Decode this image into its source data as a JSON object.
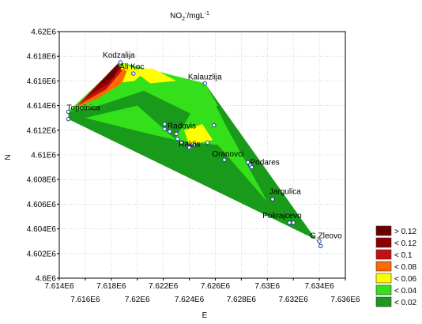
{
  "chart_data": {
    "type": "contour",
    "title": "NO2-/mgL-1",
    "title_parts": {
      "base": "NO",
      "sub": "2",
      "sup": "-",
      "unit": "/mgL",
      "unit_sup": "-1"
    },
    "xlabel": "E",
    "ylabel": "N",
    "xlim": [
      7.614,
      7.636
    ],
    "ylim": [
      4.6,
      4.62
    ],
    "grid": true,
    "x_ticks_top": [
      "7.614E6",
      "7.618E6",
      "7.622E6",
      "7.626E6",
      "7.63E6",
      "7.634E6"
    ],
    "x_ticks_bottom": [
      "7.616E6",
      "7.62E6",
      "7.624E6",
      "7.628E6",
      "7.632E6",
      "7.636E6"
    ],
    "y_ticks": [
      "4.6E6",
      "4.602E6",
      "4.604E6",
      "4.606E6",
      "4.608E6",
      "4.61E6",
      "4.612E6",
      "4.614E6",
      "4.616E6",
      "4.618E6",
      "4.62E6"
    ],
    "legend_position": "bottom-right",
    "legend": [
      {
        "label": "> 0.12",
        "color": "#6b0000"
      },
      {
        "label": "< 0.12",
        "color": "#8c0000"
      },
      {
        "label": "< 0.1",
        "color": "#c41010"
      },
      {
        "label": "< 0.08",
        "color": "#ff6a00"
      },
      {
        "label": "< 0.06",
        "color": "#ffff00"
      },
      {
        "label": "< 0.04",
        "color": "#33e01a"
      },
      {
        "label": "< 0.02",
        "color": "#1a9a1a"
      }
    ],
    "stations": [
      {
        "name": "Kodzalija",
        "x": 7.6187,
        "y": 4.6175
      },
      {
        "name": "Ali Koc",
        "x": 7.6197,
        "y": 4.6167
      },
      {
        "name": "Kalauzlija",
        "x": 7.6252,
        "y": 4.6158
      },
      {
        "name": "Topolnica",
        "x": 7.6147,
        "y": 4.6135
      },
      {
        "name": "Radovis",
        "x": 7.6222,
        "y": 4.6124
      },
      {
        "name": "Raklis",
        "x": 7.6238,
        "y": 4.6108
      },
      {
        "name": "Oranovci",
        "x": 7.6266,
        "y": 4.6096
      },
      {
        "name": "Podares",
        "x": 7.6288,
        "y": 4.6092
      },
      {
        "name": "Jargulica",
        "x": 7.6304,
        "y": 4.6063
      },
      {
        "name": "Pokrajcevo",
        "x": 7.6317,
        "y": 4.6045
      },
      {
        "name": "G.Zleovo",
        "x": 7.634,
        "y": 4.6028
      }
    ],
    "sample_points": [
      [
        7.6147,
        4.6135
      ],
      [
        7.6147,
        4.6129
      ],
      [
        7.6187,
        4.6175
      ],
      [
        7.6197,
        4.6166
      ],
      [
        7.6252,
        4.6158
      ],
      [
        7.6221,
        4.6125
      ],
      [
        7.6221,
        4.6121
      ],
      [
        7.6225,
        4.6119
      ],
      [
        7.623,
        4.6117
      ],
      [
        7.6231,
        4.6113
      ],
      [
        7.6234,
        4.611
      ],
      [
        7.6239,
        4.6107
      ],
      [
        7.624,
        4.6106
      ],
      [
        7.6244,
        4.6108
      ],
      [
        7.6254,
        4.611
      ],
      [
        7.6259,
        4.6124
      ],
      [
        7.6267,
        4.6096
      ],
      [
        7.6285,
        4.6094
      ],
      [
        7.6287,
        4.6092
      ],
      [
        7.6288,
        4.609
      ],
      [
        7.6304,
        4.6064
      ],
      [
        7.6317,
        4.6045
      ],
      [
        7.632,
        4.6045
      ],
      [
        7.634,
        4.603
      ],
      [
        7.6341,
        4.6026
      ]
    ]
  }
}
